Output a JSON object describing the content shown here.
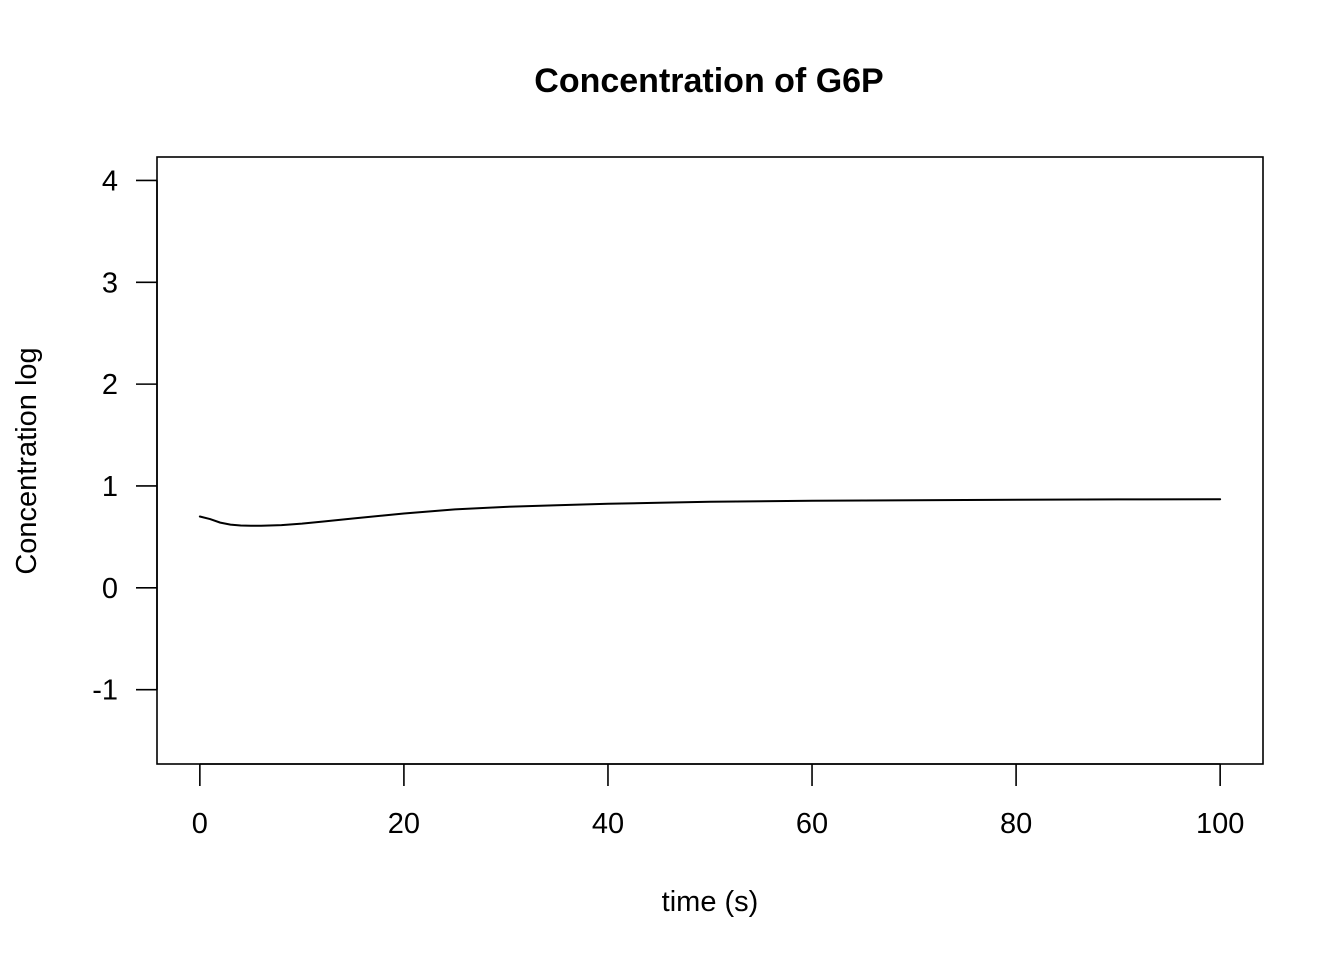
{
  "chart_data": {
    "type": "line",
    "title": "Concentration of G6P",
    "xlabel": "time (s)",
    "ylabel": "Concentration log",
    "xlim": [
      -4.2,
      104.2
    ],
    "ylim": [
      -1.73,
      4.23
    ],
    "x_ticks": [
      0,
      20,
      40,
      60,
      80,
      100
    ],
    "y_ticks": [
      -1,
      0,
      1,
      2,
      3,
      4
    ],
    "grid": false,
    "legend": "none",
    "line_color": "#000000",
    "series": [
      {
        "x": [
          0,
          1,
          2,
          3,
          4,
          5,
          6,
          8,
          10,
          12,
          15,
          18,
          20,
          25,
          30,
          35,
          40,
          45,
          50,
          60,
          70,
          80,
          90,
          100
        ],
        "values": [
          0.7,
          0.675,
          0.64,
          0.62,
          0.612,
          0.609,
          0.609,
          0.615,
          0.63,
          0.65,
          0.68,
          0.71,
          0.73,
          0.77,
          0.795,
          0.81,
          0.825,
          0.835,
          0.845,
          0.855,
          0.86,
          0.865,
          0.868,
          0.87
        ]
      }
    ]
  }
}
